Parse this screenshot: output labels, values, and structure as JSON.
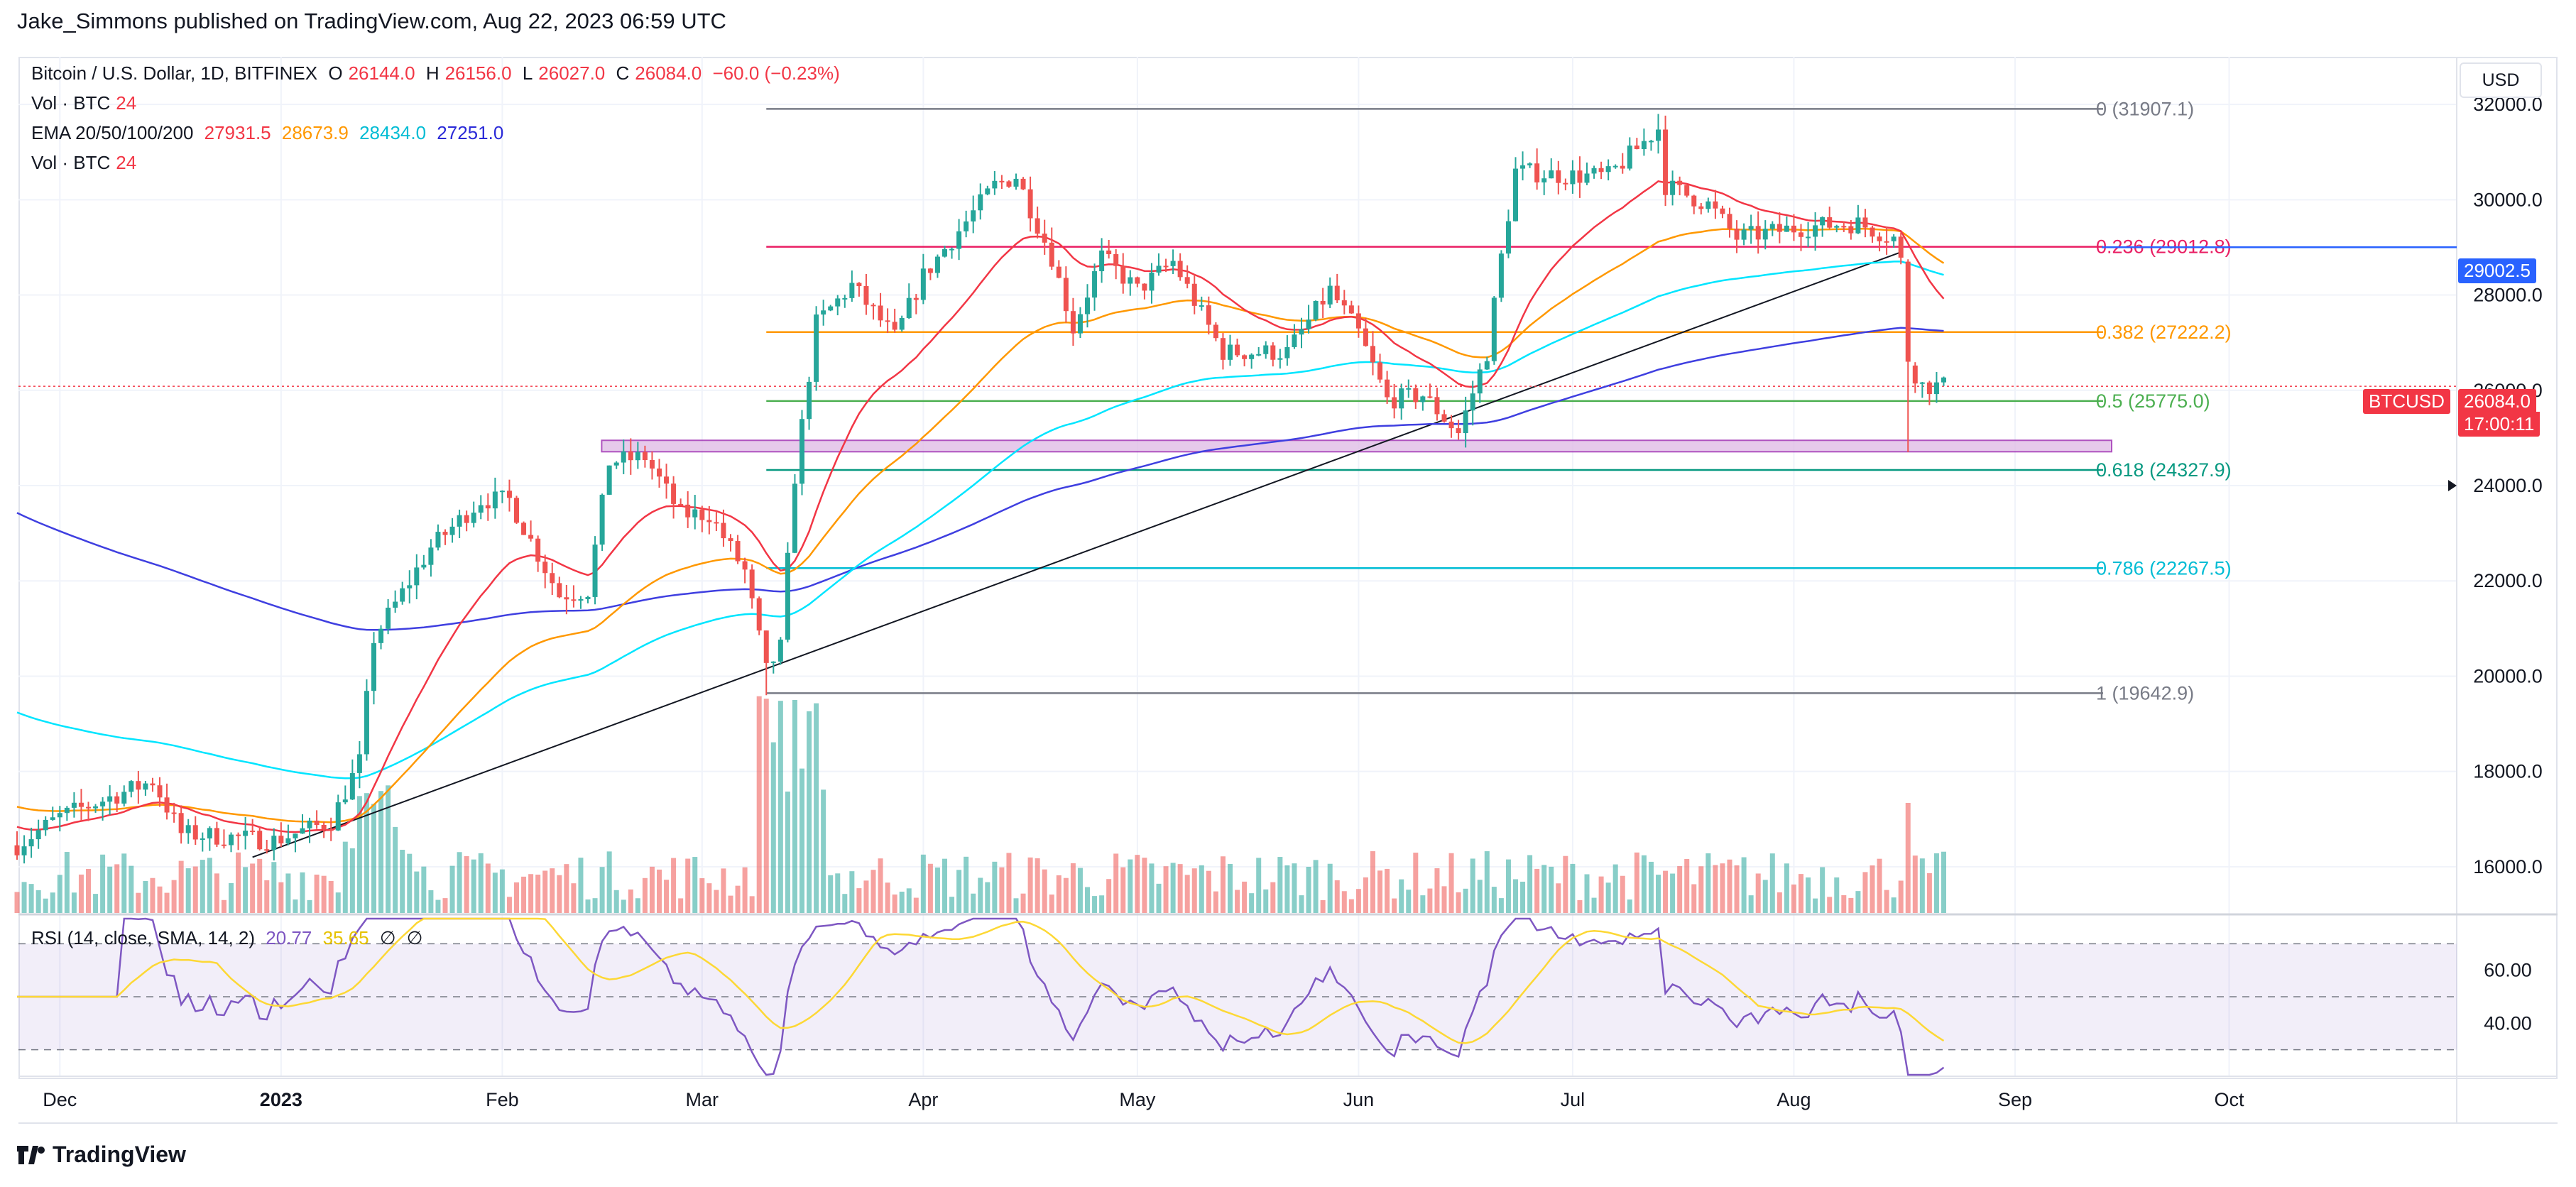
{
  "header": {
    "published": "Jake_Simmons published on TradingView.com, Aug 22, 2023 06:59 UTC"
  },
  "legend": {
    "symbol": "Bitcoin / U.S. Dollar, 1D, BITFINEX",
    "open_label": "O",
    "open": "26144.0",
    "high_label": "H",
    "high": "26156.0",
    "low_label": "L",
    "low": "26027.0",
    "close_label": "C",
    "close": "26084.0",
    "change": "−60.0 (−0.23%)",
    "vol1_label": "Vol · BTC",
    "vol1_value": "24",
    "ema_label": "EMA 20/50/100/200",
    "ema20": "27931.5",
    "ema50": "28673.9",
    "ema100": "28434.0",
    "ema200": "27251.0",
    "vol2_label": "Vol · BTC",
    "vol2_value": "24"
  },
  "rsi_legend": {
    "label": "RSI (14, close, SMA, 14, 2)",
    "rsi": "20.77",
    "sma": "35.65",
    "n1": "∅",
    "n2": "∅"
  },
  "currency_button": "USD",
  "price_axis": [
    "32000.0",
    "30000.0",
    "28000.0",
    "26000.0",
    "24000.0",
    "22000.0",
    "20000.0",
    "18000.0",
    "16000.0"
  ],
  "rsi_axis": [
    "60.00",
    "40.00"
  ],
  "time_axis": [
    {
      "label": "Dec",
      "bold": false
    },
    {
      "label": "2023",
      "bold": true
    },
    {
      "label": "Feb",
      "bold": false
    },
    {
      "label": "Mar",
      "bold": false
    },
    {
      "label": "Apr",
      "bold": false
    },
    {
      "label": "May",
      "bold": false
    },
    {
      "label": "Jun",
      "bold": false
    },
    {
      "label": "Jul",
      "bold": false
    },
    {
      "label": "Aug",
      "bold": false
    },
    {
      "label": "Sep",
      "bold": false
    },
    {
      "label": "Oct",
      "bold": false
    }
  ],
  "fib_levels": [
    {
      "label": "0 (31907.1)",
      "price": 31907.1,
      "color": "#787b86"
    },
    {
      "label": "0.236 (29012.8)",
      "price": 29012.8,
      "color": "#e91e63"
    },
    {
      "label": "0.382 (27222.2)",
      "price": 27222.2,
      "color": "#ff9800"
    },
    {
      "label": "0.5 (25775.0)",
      "price": 25775.0,
      "color": "#4caf50"
    },
    {
      "label": "0.618 (24327.9)",
      "price": 24327.9,
      "color": "#089981"
    },
    {
      "label": "0.786 (22267.5)",
      "price": 22267.5,
      "color": "#00bcd4"
    },
    {
      "label": "1 (19642.9)",
      "price": 19642.9,
      "color": "#787b86"
    }
  ],
  "badges": {
    "ema_value": "29002.5",
    "symbol": "BTCUSD",
    "price": "26084.0",
    "countdown": "17:00:11"
  },
  "colors": {
    "up": "#26a69a",
    "down": "#ef5350",
    "ema20": "#f23645",
    "ema50": "#ff9800",
    "ema100": "#00e5ff",
    "ema200": "#3f3fe0",
    "rsi": "#7e57c2",
    "rsi_sma": "#fdd835"
  },
  "footer": {
    "brand": "TradingView"
  },
  "chart_data": {
    "type": "line",
    "x": [
      "2022-12-01",
      "2023-01-01",
      "2023-01-15",
      "2023-02-01",
      "2023-02-15",
      "2023-03-01",
      "2023-03-10",
      "2023-03-20",
      "2023-04-01",
      "2023-04-15",
      "2023-05-01",
      "2023-05-15",
      "2023-06-01",
      "2023-06-15",
      "2023-06-23",
      "2023-07-01",
      "2023-07-13",
      "2023-07-25",
      "2023-08-01",
      "2023-08-10",
      "2023-08-17",
      "2023-08-22"
    ],
    "series": [
      {
        "name": "Bitcoin / U.S. Dollar, 1D, BITFINEX",
        "values": [
          17050,
          16600,
          20800,
          23100,
          24600,
          23600,
          20200,
          28000,
          28500,
          30400,
          28300,
          27200,
          26900,
          25600,
          30500,
          30500,
          31500,
          29400,
          29200,
          29500,
          26100,
          26084
        ]
      }
    ],
    "ylim": [
      15000,
      33000
    ]
  }
}
